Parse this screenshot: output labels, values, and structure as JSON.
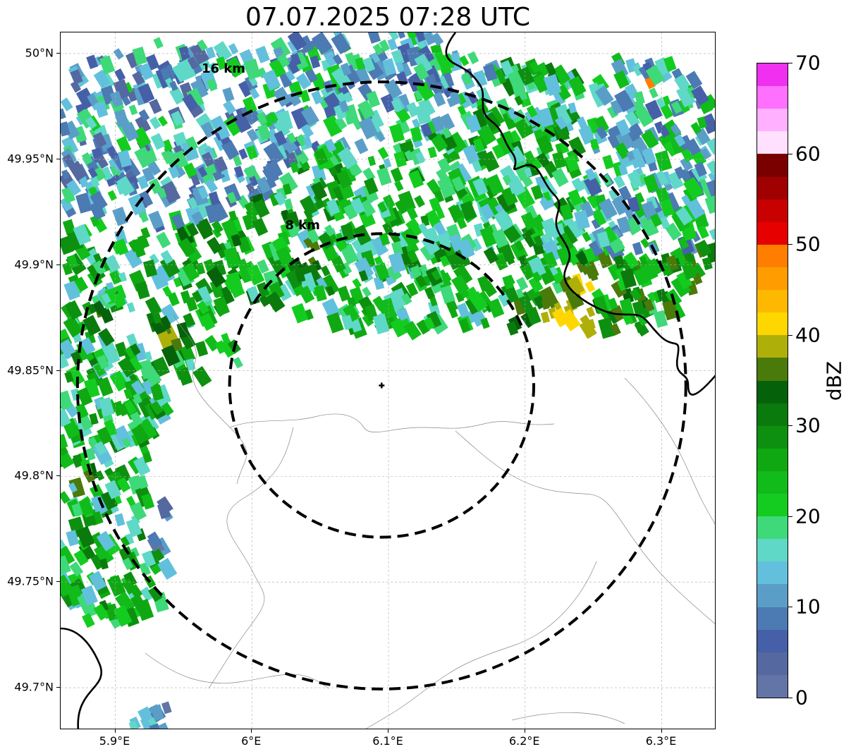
{
  "title": "07.07.2025 07:28 UTC",
  "map": {
    "lon_range": [
      5.86,
      6.34
    ],
    "lat_range": [
      49.68,
      50.01
    ],
    "lat_ticks": [
      {
        "value": 50.0,
        "label": "50°N"
      },
      {
        "value": 49.95,
        "label": "49.95°N"
      },
      {
        "value": 49.9,
        "label": "49.9°N"
      },
      {
        "value": 49.85,
        "label": "49.85°N"
      },
      {
        "value": 49.8,
        "label": "49.8°N"
      },
      {
        "value": 49.75,
        "label": "49.75°N"
      },
      {
        "value": 49.7,
        "label": "49.7°N"
      }
    ],
    "lon_ticks": [
      {
        "value": 5.9,
        "label": "5.9°E"
      },
      {
        "value": 6.0,
        "label": "6°E"
      },
      {
        "value": 6.1,
        "label": "6.1°E"
      },
      {
        "value": 6.2,
        "label": "6.2°E"
      },
      {
        "value": 6.3,
        "label": "6.3°E"
      }
    ],
    "radar_site": {
      "lon": 6.095,
      "lat": 49.843
    },
    "rings": [
      {
        "label": "8 km",
        "lat_radius": 0.0718
      },
      {
        "label": "16 km",
        "lat_radius": 0.1436
      }
    ],
    "gridlines": true
  },
  "colorbar": {
    "label": "dBZ",
    "min": 0,
    "max": 70,
    "step": 2.5,
    "tick_labels": [
      "0",
      "10",
      "20",
      "30",
      "40",
      "50",
      "60",
      "70"
    ],
    "colors": [
      "#6375a6",
      "#5568a0",
      "#4660a8",
      "#4c7ab2",
      "#5a9ec8",
      "#62c0dc",
      "#5fd8c8",
      "#3ed978",
      "#14cc20",
      "#10bb1a",
      "#10a812",
      "#0d9010",
      "#0a7a0c",
      "#05620a",
      "#4a7a0a",
      "#afaf0a",
      "#ffd700",
      "#ffb800",
      "#ff9c00",
      "#ff7e00",
      "#e60000",
      "#c80000",
      "#a00000",
      "#7a0000",
      "#ffe0ff",
      "#ffb0ff",
      "#ff70ff",
      "#f030f0"
    ]
  }
}
